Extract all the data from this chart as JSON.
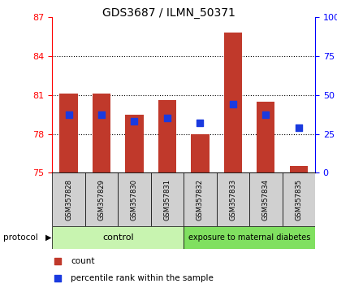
{
  "title": "GDS3687 / ILMN_50371",
  "samples": [
    "GSM357828",
    "GSM357829",
    "GSM357830",
    "GSM357831",
    "GSM357832",
    "GSM357833",
    "GSM357834",
    "GSM357835"
  ],
  "bar_values": [
    81.1,
    81.1,
    79.5,
    80.6,
    78.0,
    85.8,
    80.5,
    75.5
  ],
  "bar_base": 75,
  "blue_values": [
    79.5,
    79.5,
    79.0,
    79.2,
    78.85,
    80.3,
    79.5,
    78.5
  ],
  "ylim_left": [
    75,
    87
  ],
  "ylim_right": [
    0,
    100
  ],
  "yticks_left": [
    75,
    78,
    81,
    84,
    87
  ],
  "yticks_right": [
    0,
    25,
    50,
    75,
    100
  ],
  "bar_color": "#c0392b",
  "blue_color": "#1a3adf",
  "grid_color": "#000000",
  "control_samples": 4,
  "control_label": "control",
  "treatment_label": "exposure to maternal diabetes",
  "control_color": "#c8f4b0",
  "treatment_color": "#80e060",
  "protocol_label": "protocol",
  "legend_count": "count",
  "legend_percentile": "percentile rank within the sample",
  "xlabel_bg": "#d0d0d0",
  "bar_width": 0.55,
  "blue_size": 28,
  "title_fontsize": 10,
  "tick_fontsize": 8,
  "sample_fontsize": 6,
  "legend_fontsize": 7.5
}
